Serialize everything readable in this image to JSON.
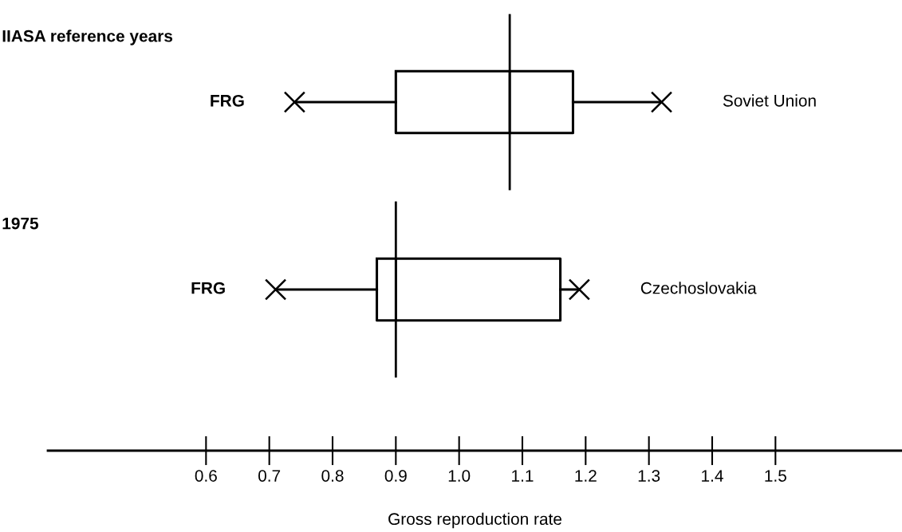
{
  "chart_data": {
    "type": "box",
    "orientation": "horizontal",
    "xlabel": "Gross reproduction rate",
    "categories": [
      "IIASA reference years",
      "1975"
    ],
    "boxes": [
      {
        "low": 0.74,
        "q1": 0.9,
        "median": 1.08,
        "q3": 1.18,
        "high": 1.32
      },
      {
        "low": 0.71,
        "q1": 0.87,
        "median": 0.9,
        "q3": 1.16,
        "high": 1.19
      }
    ],
    "series": [
      {
        "type": "scatter",
        "marker": "cross",
        "color": "#000000",
        "values": [
          0.74,
          0.71
        ]
      },
      {
        "type": "scatter",
        "marker": "cross",
        "color": "#000000",
        "values": [
          1.32,
          1.19
        ]
      }
    ],
    "ref_lines": [
      {
        "axis": "x",
        "value": 1.08
      },
      {
        "axis": "x",
        "value": 0.9
      }
    ],
    "color": "#000000",
    "xlim": [
      0.35,
      1.7
    ],
    "xticks": [
      0.6,
      0.7,
      0.8,
      0.9,
      {
        "value": 1,
        "label": "1.0"
      },
      1.1,
      1.2,
      1.3,
      1.4,
      1.5
    ],
    "tick_labels": "x",
    "grid": false,
    "annotations": [
      "FRG",
      "Soviet Union",
      "FRG",
      "Czechoslovakia"
    ]
  }
}
